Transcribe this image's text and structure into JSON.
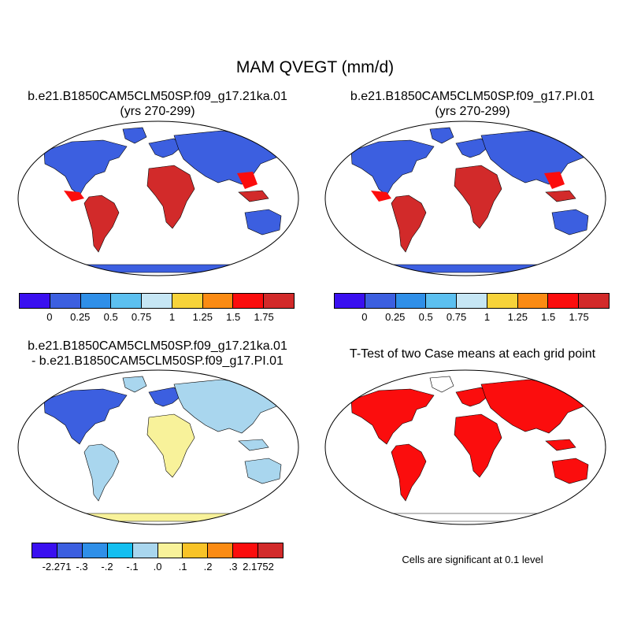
{
  "page": {
    "title": "MAM QVEGT (mm/d)"
  },
  "panels": {
    "top_left": {
      "title": "b.e21.B1850CAM5CLM50SP.f09_g17.21ka.01",
      "subtitle": "(yrs 270-299)"
    },
    "top_right": {
      "title": "b.e21.B1850CAM5CLM50SP.f09_g17.PI.01",
      "subtitle": "(yrs 270-299)"
    },
    "bottom_left": {
      "title": "b.e21.B1850CAM5CLM50SP.f09_g17.21ka.01",
      "subtitle": "- b.e21.B1850CAM5CLM50SP.f09_g17.PI.01"
    },
    "bottom_right": {
      "title": "T-Test of two Case means at each grid point",
      "note": "Cells are significant at 0.1 level"
    }
  },
  "colorbar_abs": {
    "colors": [
      "#3a10f0",
      "#3c5fe0",
      "#2f8fe8",
      "#5cc0f0",
      "#c6e6f4",
      "#f7d33a",
      "#fb8b13",
      "#fb0d0d",
      "#d22a2a"
    ],
    "labels": [
      "0",
      "0.25",
      "0.5",
      "0.75",
      "1",
      "1.25",
      "1.5",
      "1.75"
    ]
  },
  "colorbar_diff": {
    "colors": [
      "#3a10f0",
      "#3c5fe0",
      "#2f8fe8",
      "#14bff0",
      "#a9d6ee",
      "#f8f29a",
      "#f8c327",
      "#fb8b13",
      "#fb0d0d",
      "#d22a2a"
    ],
    "labels": [
      "-2.271",
      "-.3",
      "-.2",
      "-.1",
      ".0",
      ".1",
      ".2",
      ".3",
      "2.1752"
    ]
  },
  "map_colors": {
    "ocean": "#ffffff",
    "coast": "#000000",
    "tropics_high": "#d22a2a",
    "low": "#3c5fe0",
    "ttest_sig": "#fb0d0d"
  }
}
